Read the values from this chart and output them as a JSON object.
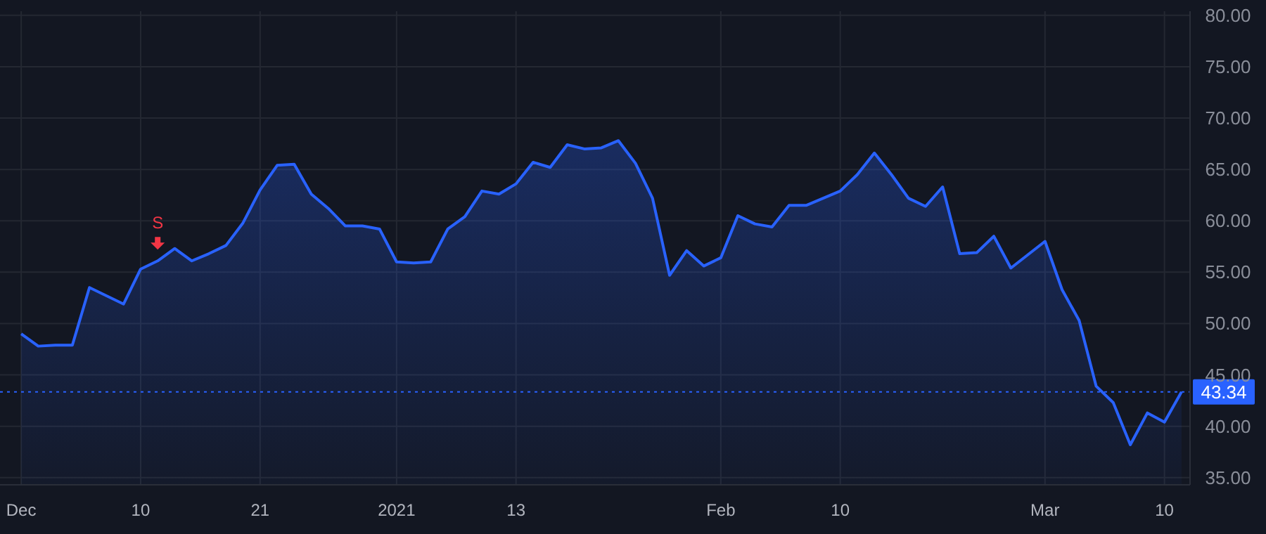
{
  "chart_data": {
    "type": "area",
    "categories": [
      "Dec",
      null,
      null,
      null,
      null,
      null,
      null,
      "10",
      null,
      null,
      null,
      null,
      null,
      null,
      "21",
      null,
      null,
      null,
      null,
      null,
      null,
      null,
      "2021",
      null,
      null,
      null,
      null,
      null,
      null,
      "13",
      null,
      null,
      null,
      null,
      null,
      null,
      null,
      null,
      null,
      null,
      null,
      "Feb",
      null,
      null,
      null,
      null,
      null,
      null,
      "10",
      null,
      null,
      null,
      null,
      null,
      null,
      null,
      null,
      null,
      null,
      null,
      "Mar",
      null,
      null,
      null,
      null,
      null,
      null,
      "10",
      null
    ],
    "series": [
      {
        "color": "#2962ff",
        "values": [
          49.0,
          47.8,
          47.9,
          47.9,
          53.5,
          52.7,
          51.9,
          55.3,
          56.1,
          57.3,
          56.1,
          56.8,
          57.6,
          59.8,
          63.0,
          65.4,
          65.5,
          62.6,
          61.2,
          59.5,
          59.5,
          59.2,
          56.0,
          55.9,
          56.0,
          59.2,
          60.4,
          62.9,
          62.6,
          63.6,
          65.7,
          65.2,
          67.4,
          67.0,
          67.1,
          67.8,
          65.6,
          62.2,
          54.7,
          57.1,
          55.6,
          56.4,
          60.5,
          59.7,
          59.4,
          61.5,
          61.5,
          62.2,
          62.9,
          64.5,
          66.6,
          64.5,
          62.2,
          61.4,
          63.3,
          56.8,
          56.9,
          58.5,
          55.4,
          56.7,
          58.0,
          53.3,
          50.3,
          43.9,
          42.3,
          38.2,
          41.3,
          40.4,
          43.34
        ]
      }
    ],
    "ylim": [
      34.3,
      80.4
    ],
    "yticks": [
      {
        "value": 35,
        "label": "35.00"
      },
      {
        "value": 40,
        "label": "40.00"
      },
      {
        "value": 45,
        "label": "45.00"
      },
      {
        "value": 50,
        "label": "50.00"
      },
      {
        "value": 55,
        "label": "55.00"
      },
      {
        "value": 60,
        "label": "60.00"
      },
      {
        "value": 65,
        "label": "65.00"
      },
      {
        "value": 70,
        "label": "70.00"
      },
      {
        "value": 75,
        "label": "75.00"
      },
      {
        "value": 80,
        "label": "80.00"
      }
    ],
    "ref_lines": [
      {
        "axis": "y",
        "value": 43.34,
        "label": "43.34",
        "color": "#2962ff",
        "line_style": "dotted"
      }
    ],
    "annotations": [
      {
        "text": "S",
        "y": 56.1
      }
    ],
    "grid": true,
    "marker": "none",
    "line_style": "solid"
  }
}
